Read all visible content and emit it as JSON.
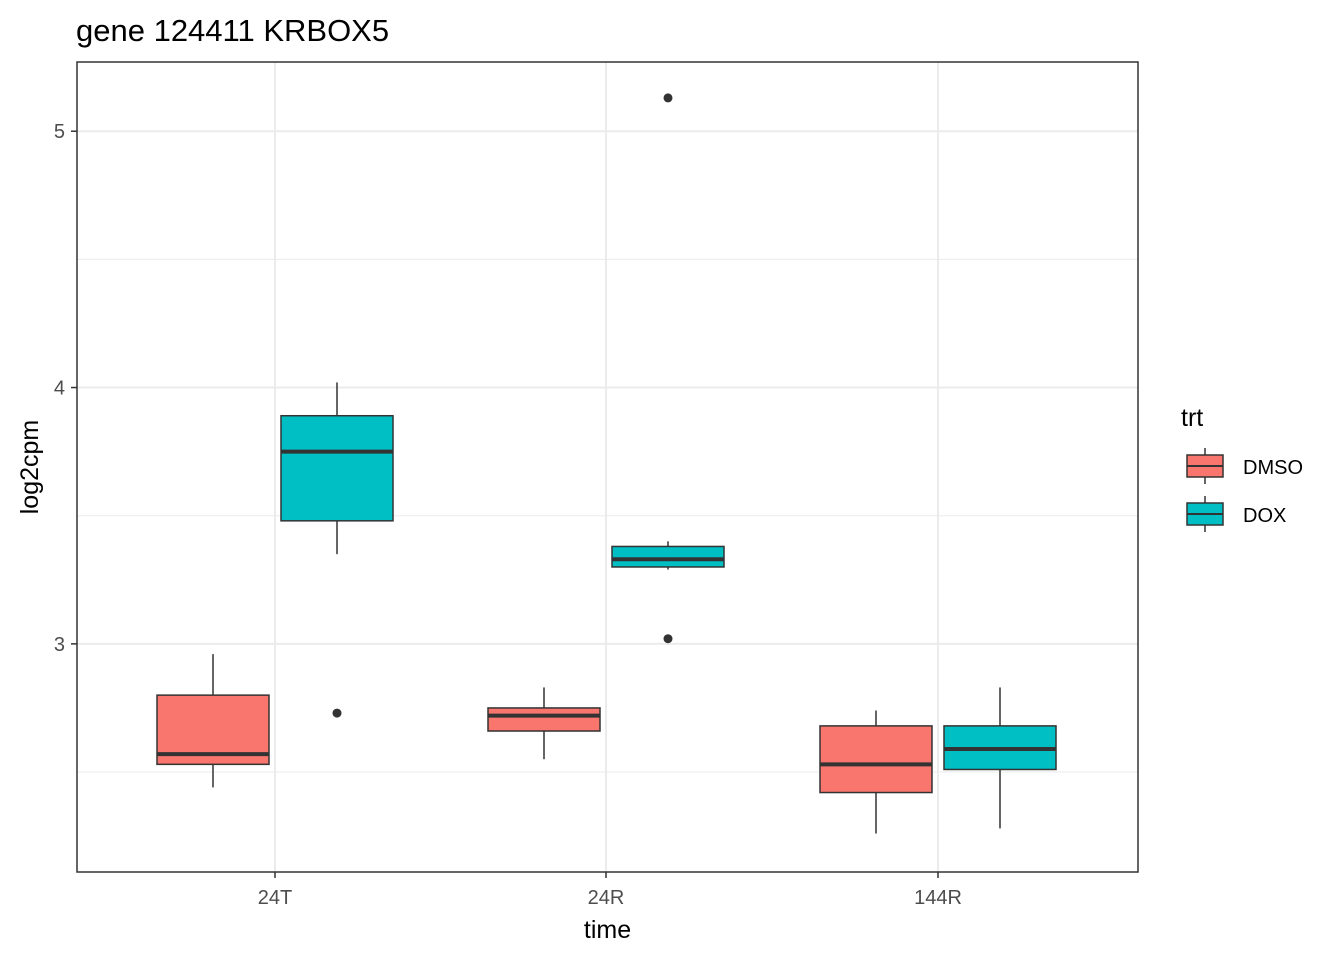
{
  "chart_data": {
    "type": "boxplot",
    "title": "gene 124411 KRBOX5",
    "xlabel": "time",
    "ylabel": "log2cpm",
    "categories": [
      "24T",
      "24R",
      "144R"
    ],
    "yticks": [
      3,
      4,
      5
    ],
    "ylim": [
      2.11,
      5.27
    ],
    "grid": true,
    "legend": {
      "title": "trt",
      "position": "right",
      "entries": [
        {
          "label": "DMSO",
          "color": "#F8766D"
        },
        {
          "label": "DOX",
          "color": "#00BFC4"
        }
      ]
    },
    "series": [
      {
        "name": "DMSO",
        "color": "#F8766D",
        "boxes": [
          {
            "category": "24T",
            "lower_whisker": 2.44,
            "q1": 2.53,
            "median": 2.57,
            "q3": 2.8,
            "upper_whisker": 2.96,
            "outliers": []
          },
          {
            "category": "24R",
            "lower_whisker": 2.55,
            "q1": 2.66,
            "median": 2.72,
            "q3": 2.75,
            "upper_whisker": 2.83,
            "outliers": []
          },
          {
            "category": "144R",
            "lower_whisker": 2.26,
            "q1": 2.42,
            "median": 2.53,
            "q3": 2.68,
            "upper_whisker": 2.74,
            "outliers": []
          }
        ]
      },
      {
        "name": "DOX",
        "color": "#00BFC4",
        "boxes": [
          {
            "category": "24T",
            "lower_whisker": 3.35,
            "q1": 3.48,
            "median": 3.75,
            "q3": 3.89,
            "upper_whisker": 4.02,
            "outliers": [
              2.73
            ]
          },
          {
            "category": "24R",
            "lower_whisker": 3.29,
            "q1": 3.3,
            "median": 3.33,
            "q3": 3.38,
            "upper_whisker": 3.4,
            "outliers": [
              5.13,
              3.02
            ]
          },
          {
            "category": "144R",
            "lower_whisker": 2.28,
            "q1": 2.51,
            "median": 2.59,
            "q3": 2.68,
            "upper_whisker": 2.83,
            "outliers": []
          }
        ]
      }
    ]
  }
}
